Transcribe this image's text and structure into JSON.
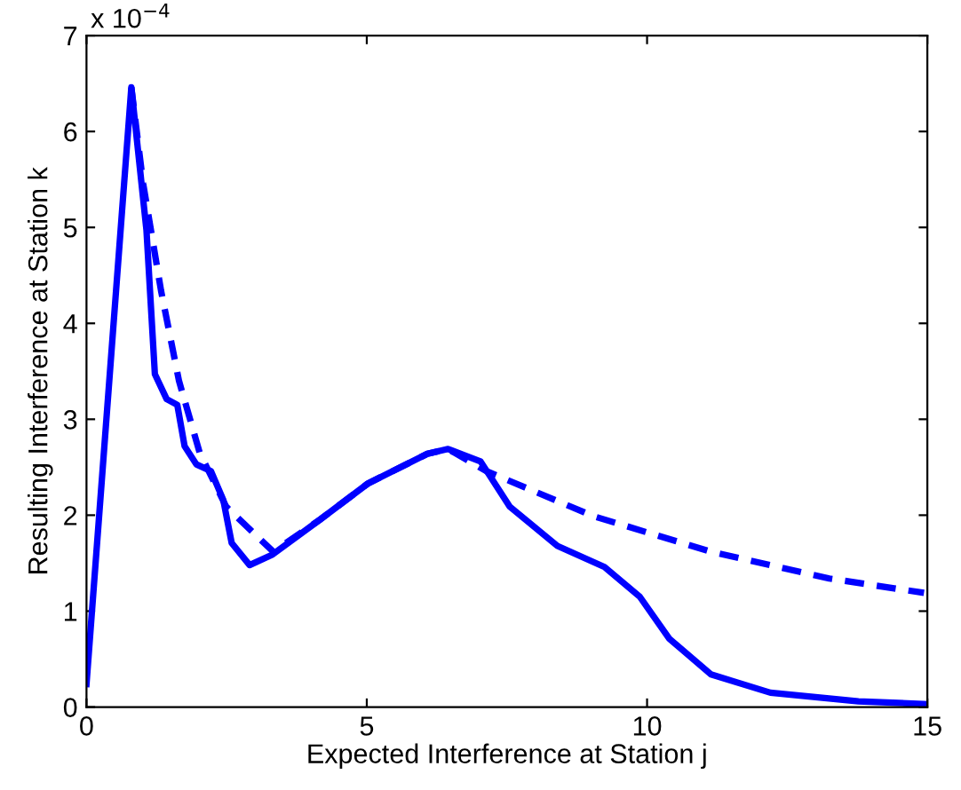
{
  "chart_data": {
    "type": "line",
    "xlabel": "Expected Interference at Station j",
    "ylabel": "Resulting Interference at Station k",
    "xlim": [
      0,
      15
    ],
    "xticks": [
      0,
      5,
      10,
      15
    ],
    "ylim": [
      0,
      7
    ],
    "yticks": [
      0,
      1,
      2,
      3,
      4,
      5,
      6,
      7
    ],
    "annotations": [
      "x 10$^{−4}$"
    ],
    "grid": false,
    "legend": false,
    "marker": "none",
    "series": [
      {
        "color": "#0000ff",
        "line_style": "solid",
        "x": [
          0,
          0.8,
          1.07,
          1.22,
          1.43,
          1.62,
          1.75,
          1.96,
          2.22,
          2.44,
          2.59,
          2.91,
          3.32,
          4.18,
          5.02,
          6.08,
          6.45,
          7.03,
          7.55,
          8.4,
          9.24,
          9.87,
          10.4,
          11.14,
          12.2,
          13.77,
          15
        ],
        "values": [
          0.24,
          6.46,
          4.97,
          3.47,
          3.21,
          3.15,
          2.72,
          2.53,
          2.46,
          2.16,
          1.71,
          1.48,
          1.59,
          1.96,
          2.33,
          2.64,
          2.69,
          2.56,
          2.09,
          1.68,
          1.46,
          1.15,
          0.71,
          0.34,
          0.15,
          0.06,
          0.03
        ]
      },
      {
        "color": "#0000ff",
        "line_style": "dashed",
        "x": [
          0.8,
          1.01,
          1.33,
          1.65,
          2.02,
          2.49,
          3.33,
          4.18,
          5.02,
          6.08,
          6.45,
          7.13,
          9.04,
          11.14,
          13.25,
          14.94
        ],
        "values": [
          6.46,
          5.46,
          4.34,
          3.4,
          2.65,
          2.09,
          1.62,
          1.96,
          2.33,
          2.64,
          2.69,
          2.46,
          1.99,
          1.62,
          1.34,
          1.19
        ]
      }
    ]
  }
}
